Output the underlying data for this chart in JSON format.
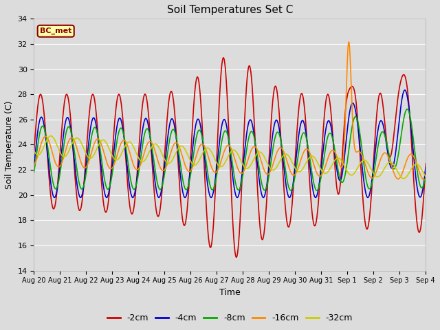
{
  "title": "Soil Temperatures Set C",
  "xlabel": "Time",
  "ylabel": "Soil Temperature (C)",
  "annotation": "BC_met",
  "ylim": [
    14,
    34
  ],
  "xlim": [
    0,
    15
  ],
  "series_labels": [
    "-2cm",
    "-4cm",
    "-8cm",
    "-16cm",
    "-32cm"
  ],
  "series_colors": [
    "#cc0000",
    "#0000cc",
    "#00aa00",
    "#ff8800",
    "#cccc00"
  ],
  "x_tick_labels": [
    "Aug 20",
    "Aug 21",
    "Aug 22",
    "Aug 23",
    "Aug 24",
    "Aug 25",
    "Aug 26",
    "Aug 27",
    "Aug 28",
    "Aug 29",
    "Aug 30",
    "Aug 31",
    "Sep 1",
    "Sep 2",
    "Sep 3",
    "Sep 4"
  ],
  "n_points": 2000,
  "period": 1.0,
  "plot_bg_color": "#dcdcdc",
  "fig_bg_color": "#dcdcdc",
  "linewidth": 1.2,
  "grid_color": "#ffffff",
  "annotation_text_color": "#8b0000",
  "annotation_bg": "#ffffaa",
  "annotation_border": "#8b0000"
}
